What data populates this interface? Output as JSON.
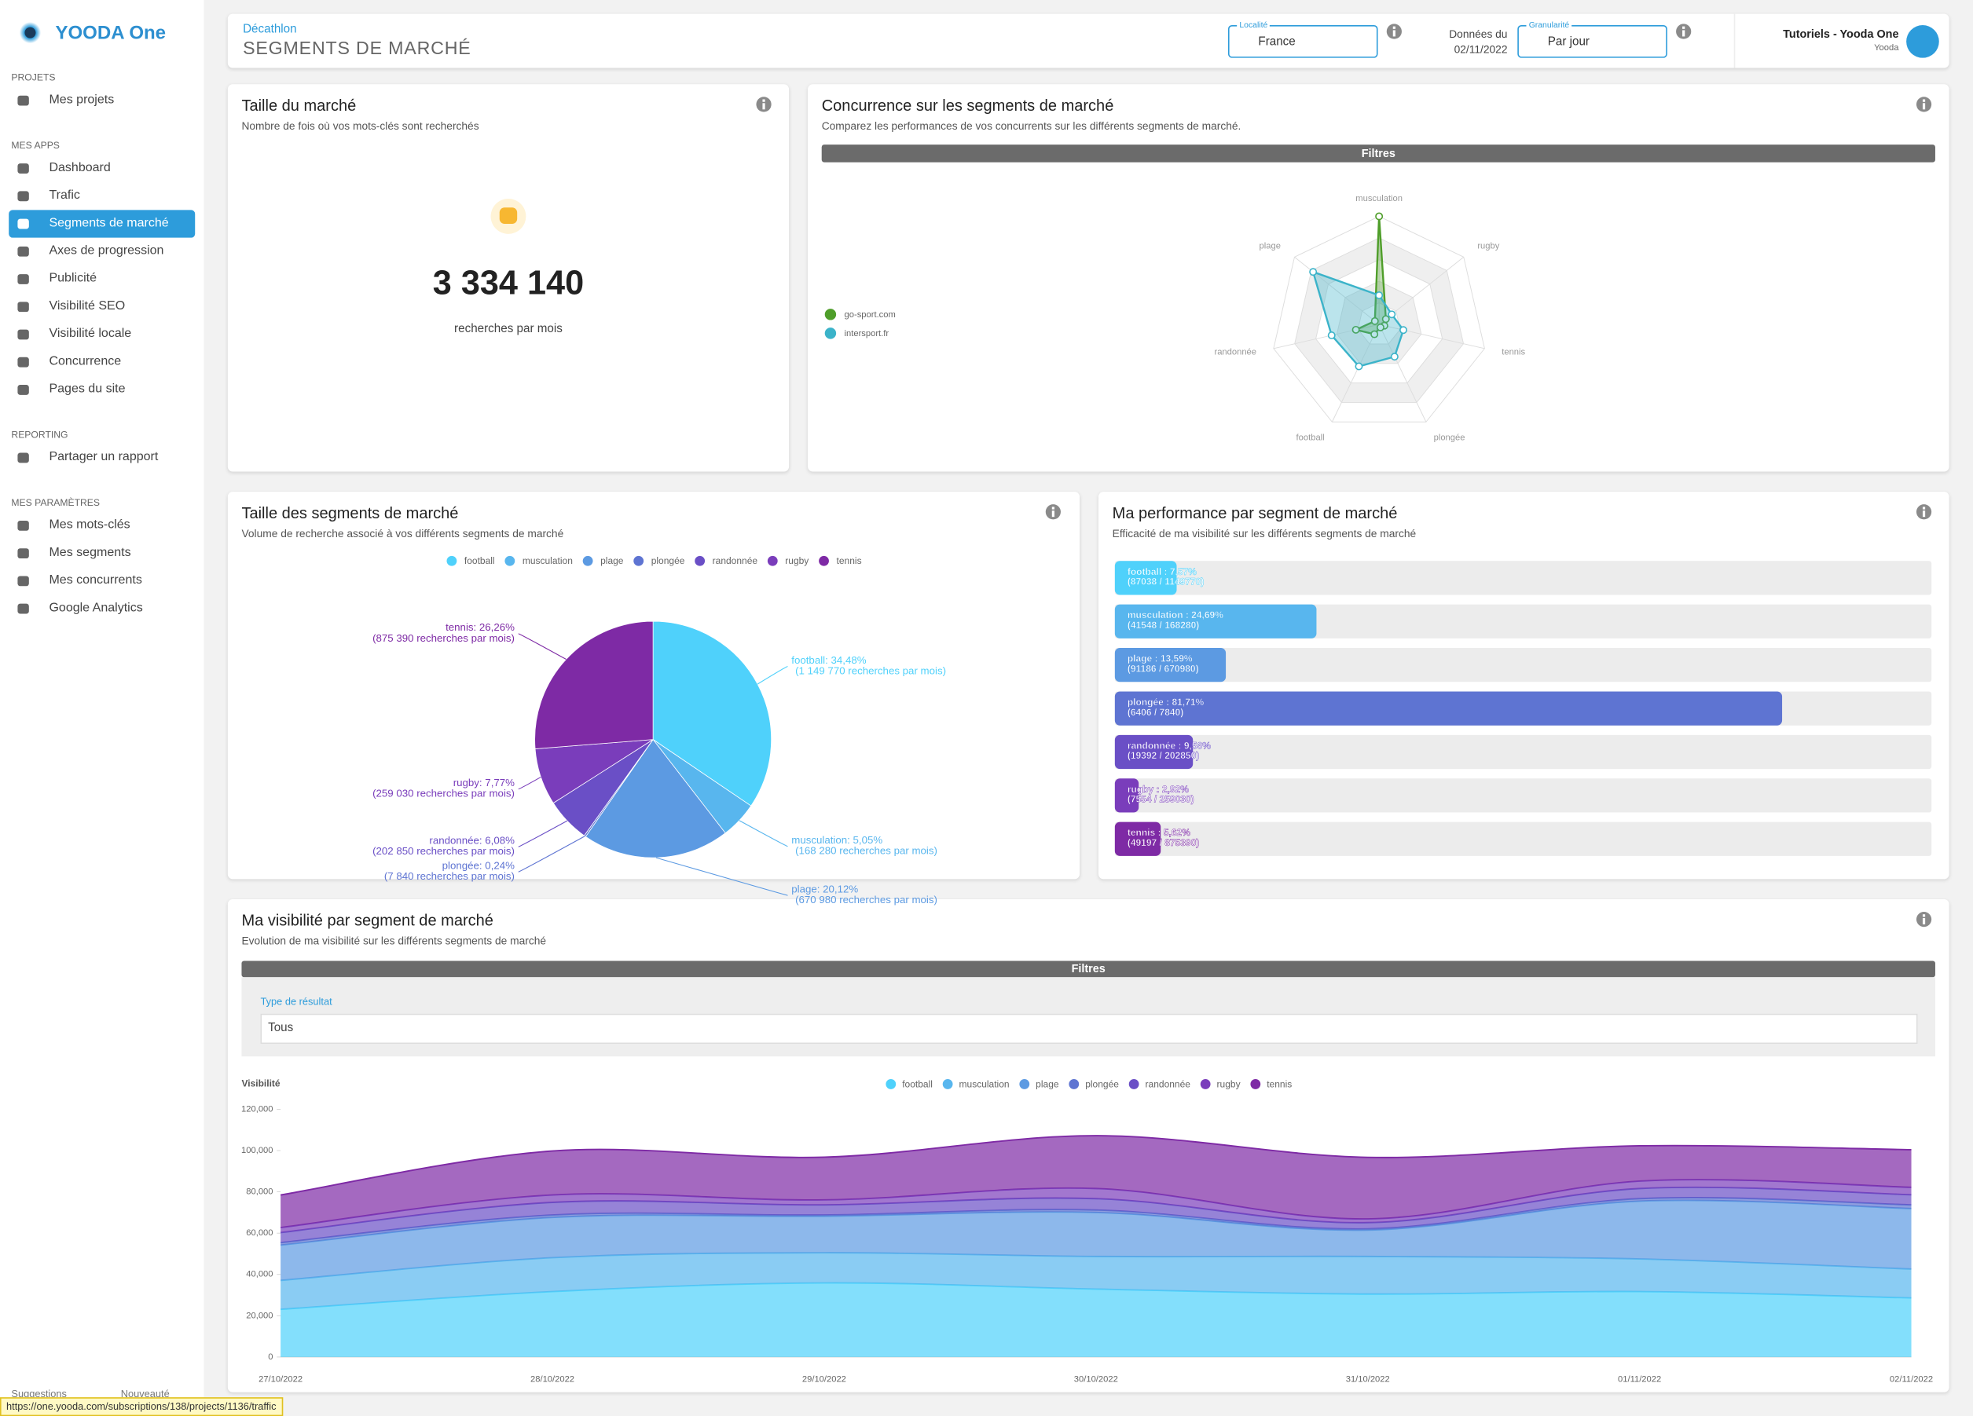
{
  "sidebar": {
    "brand": "YOODA One",
    "sections": [
      {
        "title": "PROJETS",
        "items": [
          "Mes projets"
        ]
      },
      {
        "title": "MES APPS",
        "items": [
          "Dashboard",
          "Trafic",
          "Segments de marché",
          "Axes de progression",
          "Publicité",
          "Visibilité SEO",
          "Visibilité locale",
          "Concurrence",
          "Pages du site"
        ]
      },
      {
        "title": "REPORTING",
        "items": [
          "Partager un rapport"
        ]
      },
      {
        "title": "MES PARAMÈTRES",
        "items": [
          "Mes mots-clés",
          "Mes segments",
          "Mes concurrents",
          "Google Analytics"
        ]
      }
    ],
    "footer": [
      "Suggestions",
      "Nouveauté"
    ]
  },
  "status_url": "https://one.yooda.com/subscriptions/138/projects/1136/traffic",
  "header": {
    "brand": "Décathlon",
    "title": "SEGMENTS DE MARCHÉ",
    "location_label": "Localité",
    "location": "France",
    "data_label": "Données du",
    "data_date": "02/11/2022",
    "granularity_label": "Granularité",
    "granularity": "Par jour",
    "user": "Tutoriels - Yooda One",
    "account": "Yooda"
  },
  "market_size": {
    "title": "Taille du marché",
    "subtitle": "Nombre de fois où vos mots-clés sont recherchés",
    "value": "3 334 140",
    "caption": "recherches par mois"
  },
  "competition": {
    "title": "Concurrence sur les segments de marché",
    "subtitle": "Comparez les performances de vos concurrents sur les différents segments de marché.",
    "filter": "Filtres",
    "chart_data": {
      "type": "radar",
      "categories": [
        "musculation",
        "rugby",
        "tennis",
        "plongée",
        "football",
        "randonnée",
        "plage"
      ],
      "rlim": [
        0,
        100
      ],
      "series": [
        {
          "name": "go-sport.com",
          "color": "#4f9e2a",
          "values": [
            100,
            8,
            5,
            3,
            10,
            22,
            5
          ]
        },
        {
          "name": "intersport.fr",
          "color": "#3bb3c9",
          "values": [
            27,
            15,
            23,
            33,
            43,
            45,
            78
          ]
        }
      ]
    }
  },
  "segment_sizes": {
    "title": "Taille des segments de marché",
    "subtitle": "Volume de recherche associé à vos différents segments de marché",
    "chart_data": {
      "type": "pie",
      "categories": [
        "football",
        "musculation",
        "plage",
        "plongée",
        "randonnée",
        "rugby",
        "tennis"
      ],
      "values": [
        34.48,
        5.05,
        20.12,
        0.24,
        6.08,
        7.77,
        26.26
      ],
      "value_labels": [
        "football: 34,48%",
        "musculation: 5,05%",
        "plage: 20,12%",
        "plongée: 0,24%",
        "randonnée: 6,08%",
        "rugby: 7,77%",
        "tennis: 26,26%"
      ],
      "volume_labels": [
        "(1 149 770 recherches par mois)",
        "(168 280 recherches par mois)",
        "(670 980 recherches par mois)",
        "(7 840 recherches par mois)",
        "(202 850 recherches par mois)",
        "(259 030 recherches par mois)",
        "(875 390 recherches par mois)"
      ],
      "colors": [
        "#4fd1fb",
        "#58b6ee",
        "#5c9ae2",
        "#5e74d2",
        "#6a4fc6",
        "#7a3dbb",
        "#7e2aa5"
      ]
    }
  },
  "performance": {
    "title": "Ma performance par segment de marché",
    "subtitle": "Efficacité de ma visibilité sur les différents segments de marché",
    "chart_data": {
      "type": "bar",
      "orientation": "horizontal",
      "categories": [
        "football",
        "musculation",
        "plage",
        "plongée",
        "randonnée",
        "rugby",
        "tennis"
      ],
      "values": [
        7.57,
        24.69,
        13.59,
        81.71,
        9.56,
        2.92,
        5.62
      ],
      "value_labels": [
        "football : 7,57%",
        "musculation : 24,69%",
        "plage : 13,59%",
        "plongée : 81,71%",
        "randonnée : 9,56%",
        "rugby : 2,92%",
        "tennis : 5,62%"
      ],
      "ratio_labels": [
        "(87038 / 1149770)",
        "(41548 / 168280)",
        "(91186 / 670980)",
        "(6406 / 7840)",
        "(19392 / 202850)",
        "(7554 / 259030)",
        "(49197 / 875390)"
      ],
      "colors": [
        "#4fd1fb",
        "#58b6ee",
        "#5c9ae2",
        "#5e74d2",
        "#6a4fc6",
        "#7a3dbb",
        "#7e2aa5"
      ],
      "xlim": [
        0,
        100
      ]
    }
  },
  "visibility": {
    "title": "Ma visibilité par segment de marché",
    "subtitle": "Evolution de ma visibilité sur les différents segments de marché",
    "filter": "Filtres",
    "filter_label": "Type de résultat",
    "filter_value": "Tous",
    "chart_data": {
      "type": "area",
      "stacked": true,
      "ylabel": "Visibilité",
      "x": [
        "27/10/2022",
        "28/10/2022",
        "29/10/2022",
        "30/10/2022",
        "31/10/2022",
        "01/11/2022",
        "02/11/2022"
      ],
      "series": [
        {
          "name": "football",
          "color": "#4fd1fb",
          "values": [
            23100,
            31700,
            35900,
            32900,
            30500,
            31700,
            28600
          ]
        },
        {
          "name": "musculation",
          "color": "#58b6ee",
          "values": [
            14000,
            16400,
            14600,
            15800,
            18200,
            15800,
            14000
          ]
        },
        {
          "name": "plage",
          "color": "#5c9ae2",
          "values": [
            17100,
            19500,
            17700,
            21300,
            12800,
            28000,
            29300
          ]
        },
        {
          "name": "plongée",
          "color": "#5e74d2",
          "values": [
            1200,
            1200,
            600,
            1200,
            600,
            1200,
            1800
          ]
        },
        {
          "name": "randonnée",
          "color": "#6a4fc6",
          "values": [
            4900,
            6100,
            4900,
            5500,
            3000,
            4900,
            4900
          ]
        },
        {
          "name": "rugby",
          "color": "#7a3dbb",
          "values": [
            2400,
            3600,
            2400,
            4900,
            1800,
            3600,
            3600
          ]
        },
        {
          "name": "tennis",
          "color": "#7e2aa5",
          "values": [
            15800,
            21300,
            20700,
            25600,
            29800,
            17100,
            18200
          ]
        }
      ],
      "ylim": [
        0,
        120000
      ],
      "yticks": [
        0,
        {
          "value": 20000,
          "label": "20,000"
        },
        {
          "value": 40000,
          "label": "40,000"
        },
        {
          "value": 60000,
          "label": "60,000"
        },
        {
          "value": 80000,
          "label": "80,000"
        },
        {
          "value": 100000,
          "label": "100,000"
        },
        {
          "value": 120000,
          "label": "120,000"
        }
      ],
      "grid": false
    }
  }
}
